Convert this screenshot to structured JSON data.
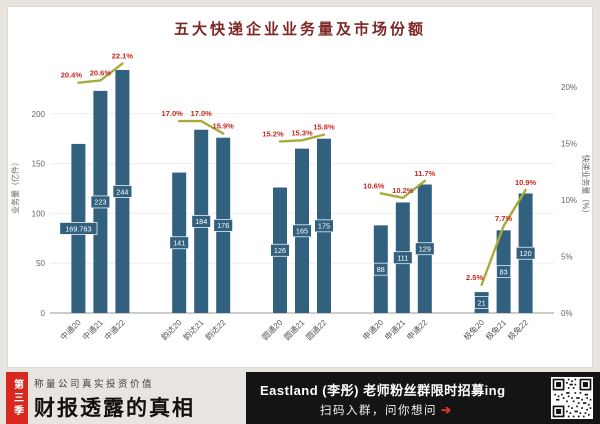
{
  "chart_data": {
    "type": "bar",
    "title": "五大快递企业业务量及市场份额",
    "categories": [
      "中通20",
      "中通21",
      "中通22",
      "韵达20",
      "韵达21",
      "韵达22",
      "圆通20",
      "圆通21",
      "圆通22",
      "申通20",
      "申通21",
      "申通22",
      "极兔20",
      "极兔21",
      "极兔22"
    ],
    "group_size": 3,
    "series": [
      {
        "name": "业务量（亿件）",
        "type": "bar",
        "axis": "left",
        "values": [
          169.763,
          223,
          244,
          141,
          184,
          176,
          126,
          165,
          175,
          88,
          111,
          129,
          21,
          83,
          120
        ],
        "labels": [
          "169.763",
          "223",
          "244",
          "141",
          "184",
          "176",
          "126",
          "165",
          "175",
          "88",
          "111",
          "129",
          "21",
          "83",
          "120"
        ]
      },
      {
        "name": "市场份额（%）",
        "type": "line",
        "axis": "right",
        "values": [
          20.4,
          20.6,
          22.1,
          17.0,
          17.0,
          15.9,
          15.2,
          15.3,
          15.8,
          10.6,
          10.2,
          11.7,
          2.5,
          7.7,
          10.9
        ],
        "labels": [
          "20.4%",
          "20.6%",
          "22.1%",
          "17.0%",
          "17.0%",
          "15.9%",
          "15.2%",
          "15.3%",
          "15.8%",
          "10.6%",
          "10.2%",
          "11.7%",
          "2.5%",
          "7.7%",
          "10.9%"
        ]
      }
    ],
    "ylabel_left": "业务量（亿件）",
    "ylabel_right": "快递业务量（%）",
    "ylim_left": [
      0,
      255
    ],
    "ylim_right": [
      0,
      22.5
    ],
    "left_ticks": [
      {
        "value": 0,
        "label": "0"
      },
      {
        "value": 50,
        "label": "50"
      },
      {
        "value": 100,
        "label": "100"
      },
      {
        "value": 150,
        "label": "150"
      },
      {
        "value": 200,
        "label": "200"
      }
    ],
    "right_ticks": [
      {
        "value": 0,
        "label": "0%"
      },
      {
        "value": 5,
        "label": "5%"
      },
      {
        "value": 10,
        "label": "10%"
      },
      {
        "value": 15,
        "label": "15%"
      },
      {
        "value": 20,
        "label": "20%"
      }
    ],
    "grid": true,
    "legend": "none",
    "colors": {
      "bar": "#32617f",
      "line": "#a9ab39",
      "pct_label": "#c9281e",
      "title": "#7d2726",
      "axis_text": "#666666"
    }
  },
  "footer": {
    "season": "第三季",
    "tagline": "称量公司真实投资价值",
    "brand": "财报透露的真相",
    "promo_title": "Eastland (李彤) 老师粉丝群限时招募ing",
    "promo_subtitle": "扫码入群，问你想问",
    "arrow": "➔",
    "colors": {
      "banner": "#d7281e",
      "promo_bg": "#141414"
    }
  }
}
